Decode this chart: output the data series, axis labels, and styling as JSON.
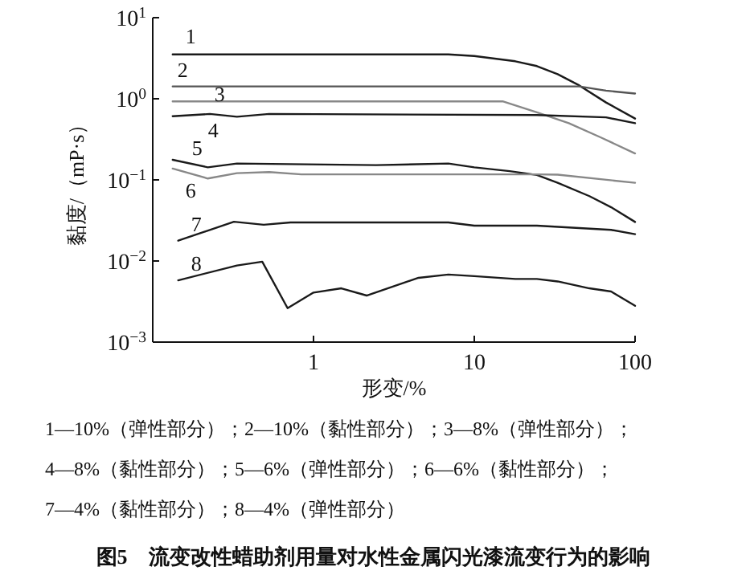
{
  "chart_data": {
    "type": "line",
    "title": "图5　流变改性蜡助剂用量对水性金属闪光漆流变行为的影响",
    "xlabel": "形变/%",
    "ylabel": "黏度/（mP·s）",
    "log": "xy",
    "grid": false,
    "xlim": [
      0.1,
      100
    ],
    "xticks": [
      {
        "value": 0.1,
        "label": null
      },
      1,
      10,
      100
    ],
    "ylim": [
      0.001,
      10
    ],
    "yticks": [
      {
        "value": 0.001,
        "label": "10$^{−3}$"
      },
      {
        "value": 0.01,
        "label": "10$^{−2}$"
      },
      {
        "value": 0.1,
        "label": "10$^{−1}$"
      },
      {
        "value": 1,
        "label": "10$^{0}$"
      },
      {
        "value": 10,
        "label": "10$^{1}$"
      }
    ],
    "annotations": [
      "1—10%（弹性部分）；2—10%（黏性部分）；3—8%（弹性部分）；",
      "4—8%（黏性部分）；5—6%（弹性部分）；6—6%（黏性部分）；",
      "7—4%（黏性部分）；8—4%（弹性部分）"
    ],
    "series": [
      {
        "name": "1",
        "color": "#1a1a1a",
        "x": [
          0.133,
          6.9,
          10,
          18,
          24.5,
          33,
          45,
          66,
          100
        ],
        "values": [
          3.53,
          3.53,
          3.37,
          2.9,
          2.53,
          2.01,
          1.46,
          0.9,
          0.57
        ]
      },
      {
        "name": "2",
        "color": "#555555",
        "x": [
          0.133,
          45,
          66,
          100
        ],
        "values": [
          1.42,
          1.42,
          1.26,
          1.16
        ]
      },
      {
        "name": "3",
        "color": "#888888",
        "x": [
          0.133,
          15,
          24.5,
          38.7,
          61,
          100
        ],
        "values": [
          0.93,
          0.93,
          0.68,
          0.5,
          0.335,
          0.212
        ]
      },
      {
        "name": "4",
        "color": "#1a1a1a",
        "x": [
          0.133,
          0.227,
          0.334,
          0.53,
          24.5,
          66,
          100
        ],
        "values": [
          0.61,
          0.65,
          0.6,
          0.65,
          0.63,
          0.59,
          0.5
        ]
      },
      {
        "name": "5",
        "color": "#1a1a1a",
        "x": [
          0.133,
          0.22,
          0.334,
          2.45,
          6.9,
          10,
          16.6,
          24.5,
          33,
          52,
          71,
          100
        ],
        "values": [
          0.177,
          0.143,
          0.159,
          0.152,
          0.159,
          0.143,
          0.128,
          0.115,
          0.092,
          0.063,
          0.046,
          0.0303
        ]
      },
      {
        "name": "6",
        "color": "#888888",
        "x": [
          0.133,
          0.22,
          0.334,
          0.53,
          0.84,
          24.5,
          33,
          100
        ],
        "values": [
          0.138,
          0.104,
          0.121,
          0.125,
          0.117,
          0.117,
          0.116,
          0.092
        ]
      },
      {
        "name": "7",
        "color": "#1a1a1a",
        "x": [
          0.144,
          0.32,
          0.49,
          0.72,
          6.9,
          10,
          24.5,
          71,
          100
        ],
        "values": [
          0.0178,
          0.0305,
          0.028,
          0.0299,
          0.0299,
          0.0273,
          0.0273,
          0.0242,
          0.0214
        ]
      },
      {
        "name": "8",
        "color": "#1a1a1a",
        "x": [
          0.144,
          0.334,
          0.48,
          0.69,
          1,
          1.49,
          2.14,
          4.5,
          6.9,
          10,
          18,
          24.5,
          33,
          52,
          71,
          100
        ],
        "values": [
          0.00578,
          0.0088,
          0.0098,
          0.00262,
          0.00408,
          0.0046,
          0.00375,
          0.0062,
          0.0068,
          0.0065,
          0.006,
          0.006,
          0.0056,
          0.0046,
          0.0042,
          0.0028
        ]
      }
    ]
  }
}
